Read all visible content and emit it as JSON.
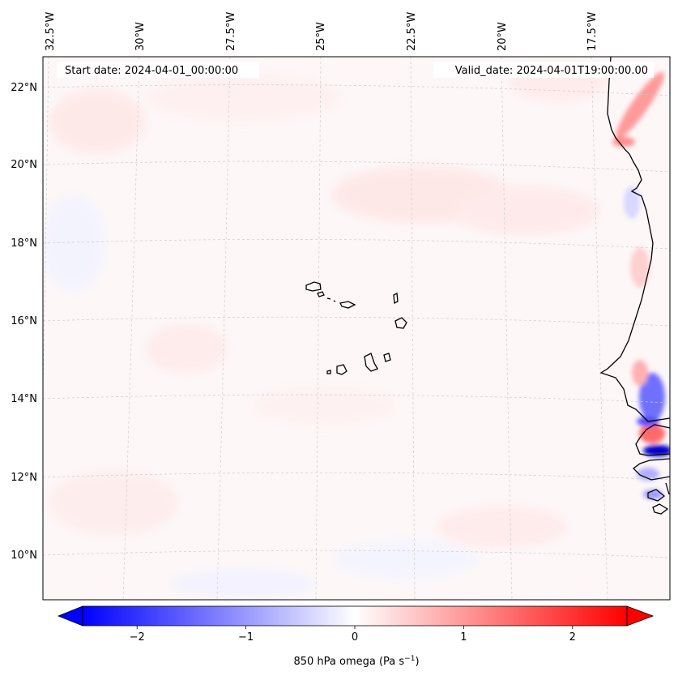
{
  "map": {
    "start_date": "Start date: 2024-04-01_00:00:00",
    "valid_date": "Valid_date: 2024-04-01T19:00:00.00",
    "lon_labels": [
      "32.5°W",
      "30°W",
      "27.5°W",
      "25°W",
      "22.5°W",
      "20°W",
      "17.5°W"
    ],
    "lat_labels": [
      "22°N",
      "20°N",
      "18°N",
      "16°N",
      "14°N",
      "12°N",
      "10°N"
    ],
    "gridlines": "dashed",
    "field_colors": {
      "positive": "#ff0000",
      "negative": "#0000ff",
      "zero": "#ffffff",
      "coast": "#000000"
    }
  },
  "colorbar": {
    "label_main": "850 hPa omega (Pa s",
    "label_sup": "−1",
    "label_end": ")",
    "ticks": [
      "−2",
      "−1",
      "0",
      "1",
      "2"
    ],
    "tick_values": [
      -2,
      -1,
      0,
      1,
      2
    ],
    "vmin": -2.5,
    "vmax": 2.5,
    "extend": "both"
  }
}
